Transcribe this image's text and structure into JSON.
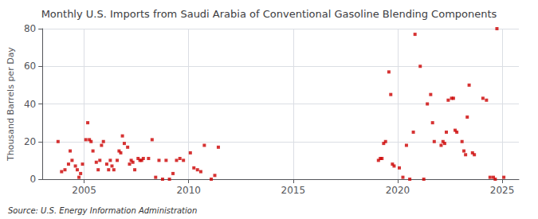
{
  "chart_data": {
    "type": "scatter",
    "title": "Monthly U.S. Imports from Saudi Arabia of Conventional Gasoline Blending Components",
    "ylabel": "Thousand Barrels per Day",
    "annotation": "Source: U.S. Energy Information Administration",
    "x": [
      2003.75,
      2003.92,
      2004.08,
      2004.25,
      2004.33,
      2004.42,
      2004.58,
      2004.67,
      2004.75,
      2004.83,
      2004.92,
      2005.08,
      2005.17,
      2005.25,
      2005.33,
      2005.42,
      2005.58,
      2005.67,
      2005.75,
      2005.83,
      2005.92,
      2006.08,
      2006.17,
      2006.25,
      2006.33,
      2006.42,
      2006.58,
      2006.67,
      2006.75,
      2006.83,
      2006.92,
      2007.08,
      2007.17,
      2007.25,
      2007.33,
      2007.42,
      2007.58,
      2007.67,
      2007.75,
      2007.83,
      2008.08,
      2008.25,
      2008.42,
      2008.58,
      2008.75,
      2008.92,
      2009.08,
      2009.25,
      2009.42,
      2009.58,
      2009.75,
      2010.08,
      2010.25,
      2010.42,
      2010.58,
      2010.75,
      2011.08,
      2011.25,
      2011.42,
      2019.08,
      2019.17,
      2019.25,
      2019.33,
      2019.42,
      2019.58,
      2019.67,
      2019.75,
      2019.83,
      2020.08,
      2020.25,
      2020.42,
      2020.58,
      2020.75,
      2020.83,
      2021.08,
      2021.25,
      2021.42,
      2021.58,
      2021.67,
      2021.75,
      2022.08,
      2022.17,
      2022.25,
      2022.33,
      2022.42,
      2022.58,
      2022.67,
      2022.75,
      2022.83,
      2023.08,
      2023.17,
      2023.25,
      2023.33,
      2023.42,
      2023.58,
      2023.67,
      2024.08,
      2024.25,
      2024.42,
      2024.58,
      2024.67,
      2024.75,
      2025.08
    ],
    "values": [
      20,
      4,
      5,
      8,
      15,
      10,
      7,
      5,
      1,
      3,
      8,
      21,
      30,
      21,
      20,
      15,
      9,
      5,
      10,
      18,
      20,
      8,
      5,
      10,
      7,
      5,
      10,
      15,
      14,
      23,
      19,
      17,
      8,
      10,
      9,
      5,
      11,
      10,
      10,
      11,
      11,
      21,
      1,
      10,
      0,
      10,
      0,
      3,
      10,
      11,
      10,
      14,
      6,
      5,
      4,
      18,
      0,
      2,
      17,
      10,
      11,
      11,
      19,
      20,
      57,
      45,
      8,
      7,
      6,
      1,
      18,
      0,
      25,
      77,
      60,
      0,
      40,
      45,
      30,
      20,
      18,
      20,
      19,
      25,
      42,
      43,
      43,
      26,
      25,
      20,
      15,
      13,
      33,
      50,
      14,
      13,
      43,
      42,
      1,
      1,
      0,
      80,
      1
    ],
    "color": "#cc0000",
    "marker": "square",
    "xlim": [
      2003.0,
      2025.8
    ],
    "xticks": [
      2005,
      2010,
      2015,
      2020,
      2025
    ],
    "ylim": [
      0,
      80
    ],
    "yticks": [
      0,
      20,
      40,
      60,
      80
    ],
    "grid": true
  }
}
